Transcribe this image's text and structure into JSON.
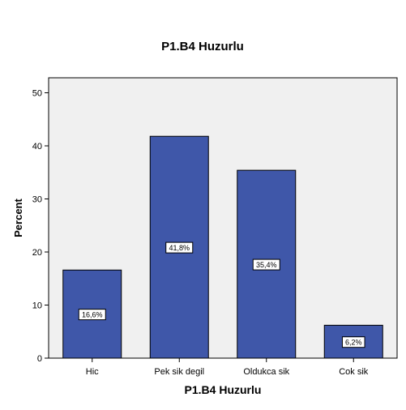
{
  "chart_data": {
    "type": "bar",
    "title": "P1.B4 Huzurlu",
    "xlabel": "P1.B4 Huzurlu",
    "ylabel": "Percent",
    "categories": [
      "Hic",
      "Pek sik degil",
      "Oldukca sik",
      "Cok sik"
    ],
    "values": [
      16.6,
      41.8,
      35.4,
      6.2
    ],
    "data_labels": [
      "16,6%",
      "41,8%",
      "35,4%",
      "6,2%"
    ],
    "ylim": [
      0,
      50
    ],
    "yticks": [
      0,
      10,
      20,
      30,
      40,
      50
    ],
    "grid": false,
    "legend": "none",
    "colors": {
      "bar": "#3f57a9",
      "plot_background": "#f0f0f0",
      "axis": "#000000"
    }
  }
}
